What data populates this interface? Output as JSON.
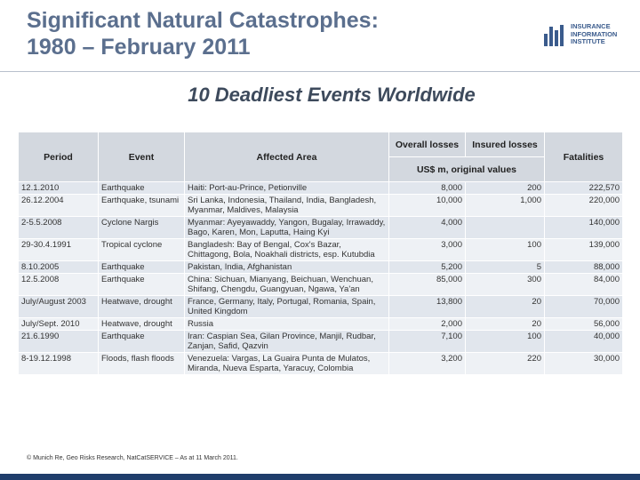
{
  "header": {
    "title_line1": "Significant Natural Catastrophes:",
    "title_line2": "1980 – February 2011",
    "logo": [
      "INSURANCE",
      "INFORMATION",
      "INSTITUTE"
    ]
  },
  "subtitle": "10 Deadliest Events Worldwide",
  "table": {
    "columns": {
      "period": "Period",
      "event": "Event",
      "area": "Affected Area",
      "overall": "Overall losses",
      "insured": "Insured losses",
      "units": "US$ m, original values",
      "fatalities": "Fatalities"
    },
    "rows": [
      [
        "12.1.2010",
        "Earthquake",
        "Haiti: Port-au-Prince, Petionville",
        "8,000",
        "200",
        "222,570"
      ],
      [
        "26.12.2004",
        "Earthquake, tsunami",
        "Sri Lanka, Indonesia, Thailand, India, Bangladesh, Myanmar, Maldives, Malaysia",
        "10,000",
        "1,000",
        "220,000"
      ],
      [
        "2-5.5.2008",
        "Cyclone Nargis",
        "Myanmar: Ayeyawaddy, Yangon, Bugalay, Irrawaddy, Bago, Karen, Mon, Laputta, Haing Kyi",
        "4,000",
        null,
        "140,000"
      ],
      [
        "29-30.4.1991",
        "Tropical cyclone",
        "Bangladesh: Bay of Bengal, Cox's Bazar, Chittagong, Bola, Noakhali districts, esp. Kutubdia",
        "3,000",
        "100",
        "139,000"
      ],
      [
        "8.10.2005",
        "Earthquake",
        "Pakistan, India, Afghanistan",
        "5,200",
        "5",
        "88,000"
      ],
      [
        "12.5.2008",
        "Earthquake",
        "China: Sichuan, Mianyang, Beichuan, Wenchuan, Shifang, Chengdu, Guangyuan, Ngawa, Ya'an",
        "85,000",
        "300",
        "84,000"
      ],
      [
        "July/August 2003",
        "Heatwave, drought",
        "France, Germany, Italy, Portugal, Romania, Spain, United Kingdom",
        "13,800",
        "20",
        "70,000"
      ],
      [
        "July/Sept. 2010",
        "Heatwave, drought",
        "Russia",
        "2,000",
        "20",
        "56,000"
      ],
      [
        "21.6.1990",
        "Earthquake",
        "Iran: Caspian Sea, Gilan Province, Manjil, Rudbar, Zanjan, Safid, Qazvin",
        "7,100",
        "100",
        "40,000"
      ],
      [
        "8-19.12.1998",
        "Floods, flash floods",
        "Venezuela: Vargas, La Guaira Punta de Mulatos, Miranda, Nueva Esparta, Yaracuy, Colombia",
        "3,200",
        "220",
        "30,000"
      ]
    ]
  },
  "footer": "© Munich Re, Geo Risks Research, NatCatSERVICE – As at 11 March 2011."
}
